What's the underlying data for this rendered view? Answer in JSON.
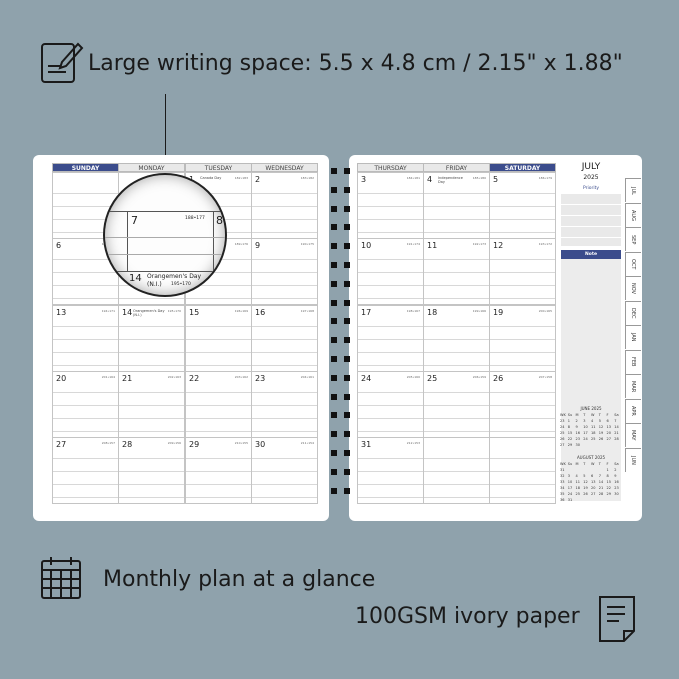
{
  "features": {
    "top": "Large writing space: 5.5 x 4.8 cm / 2.15\" x 1.88\"",
    "monthly": "Monthly plan at a glance",
    "paper": "100GSM ivory paper"
  },
  "colors": {
    "background": "#8fa2ac",
    "accent": "#3b4c8c"
  },
  "icons": {
    "top": "pencil-paper-icon",
    "monthly": "calendar-icon",
    "paper": "document-icon"
  },
  "days_left": [
    "SUNDAY",
    "MONDAY",
    "TUESDAY",
    "WEDNESDAY"
  ],
  "days_right": [
    "THURSDAY",
    "FRIDAY",
    "SATURDAY"
  ],
  "weeks": [
    [
      "",
      "",
      "1",
      "2",
      "3",
      "4",
      "5"
    ],
    [
      "6",
      "7",
      "8",
      "9",
      "10",
      "11",
      "12"
    ],
    [
      "13",
      "14",
      "15",
      "16",
      "17",
      "18",
      "19"
    ],
    [
      "20",
      "21",
      "22",
      "23",
      "24",
      "25",
      "26"
    ],
    [
      "27",
      "28",
      "29",
      "30",
      "31",
      "",
      ""
    ]
  ],
  "counts": {
    "1": "182•183",
    "2": "183•182",
    "3": "184•181",
    "4": "185•180",
    "5": "186•179",
    "6": "187•178",
    "7": "188•177",
    "8": "189•176",
    "9": "190•175",
    "10": "191•174",
    "11": "192•173",
    "12": "193•172",
    "13": "194•171",
    "14": "195•170",
    "15": "196•169",
    "16": "197•168",
    "17": "198•167",
    "18": "199•166",
    "19": "200•165",
    "20": "201•164",
    "21": "202•163",
    "22": "203•162",
    "23": "204•161",
    "24": "205•160",
    "25": "206•159",
    "26": "207•158",
    "27": "208•157",
    "28": "209•156",
    "29": "210•155",
    "30": "211•154",
    "31": "212•153"
  },
  "holidays": {
    "1": "Canada Day",
    "4": "Independence Day",
    "14": "Orangemen's Day (N.I.)"
  },
  "sidebar": {
    "month": "JULY",
    "year": "2025",
    "priority": "Priority",
    "note": "Note"
  },
  "tabs": [
    "JUL",
    "AUG",
    "SEP",
    "OCT",
    "NOV",
    "DEC",
    "JAN",
    "FEB",
    "MAR",
    "APR",
    "MAY",
    "JUN"
  ],
  "mini_calendars": [
    {
      "title": "JUNE 2025",
      "header": [
        "WK",
        "Su",
        "M",
        "T",
        "W",
        "T",
        "F",
        "Sa"
      ],
      "rows": [
        [
          "23",
          "1",
          "2",
          "3",
          "4",
          "5",
          "6",
          "7"
        ],
        [
          "24",
          "8",
          "9",
          "10",
          "11",
          "12",
          "13",
          "14"
        ],
        [
          "25",
          "15",
          "16",
          "17",
          "18",
          "19",
          "20",
          "21"
        ],
        [
          "26",
          "22",
          "23",
          "24",
          "25",
          "26",
          "27",
          "28"
        ],
        [
          "27",
          "29",
          "30",
          "",
          "",
          "",
          "",
          ""
        ]
      ]
    },
    {
      "title": "AUGUST 2025",
      "header": [
        "WK",
        "Su",
        "M",
        "T",
        "W",
        "T",
        "F",
        "Sa"
      ],
      "rows": [
        [
          "31",
          "",
          "",
          "",
          "",
          "",
          "1",
          "2"
        ],
        [
          "32",
          "3",
          "4",
          "5",
          "6",
          "7",
          "8",
          "9"
        ],
        [
          "33",
          "10",
          "11",
          "12",
          "13",
          "14",
          "15",
          "16"
        ],
        [
          "34",
          "17",
          "18",
          "19",
          "20",
          "21",
          "22",
          "23"
        ],
        [
          "35",
          "24",
          "25",
          "26",
          "27",
          "28",
          "29",
          "30"
        ],
        [
          "36",
          "31",
          "",
          "",
          "",
          "",
          "",
          ""
        ]
      ]
    }
  ],
  "magnifier": {
    "day_a": "7",
    "count_a": "188•177",
    "day_b": "8",
    "day_c": "14",
    "holiday_c": "Orangemen's Day",
    "holiday_c2": "(N.I.)",
    "count_c": "195•170"
  }
}
